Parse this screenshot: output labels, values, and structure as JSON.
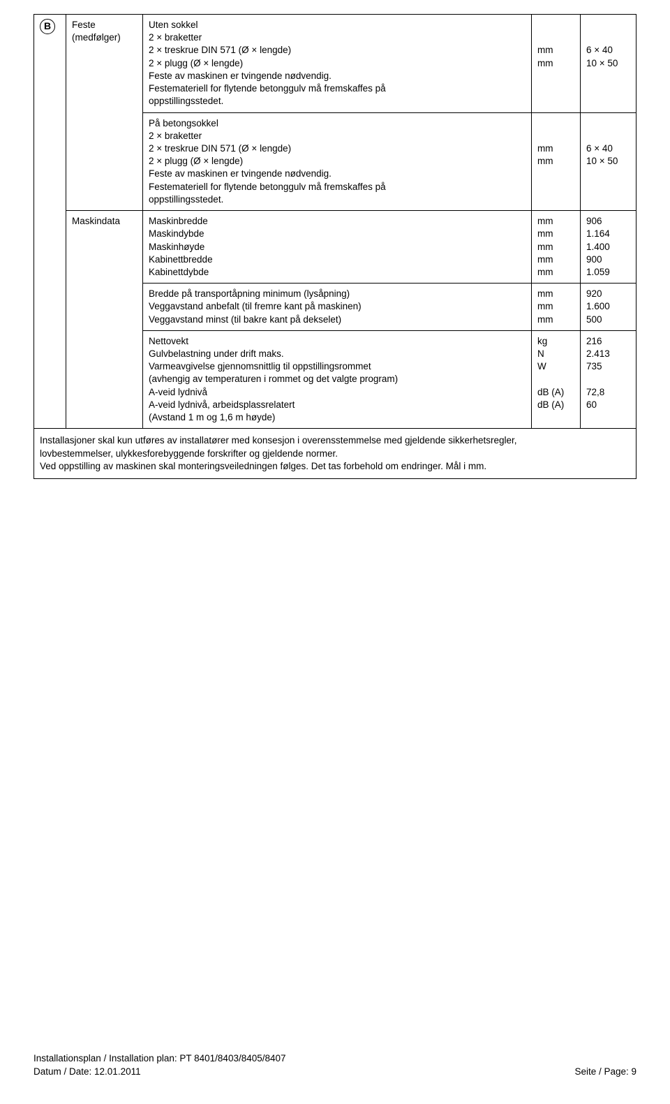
{
  "badge": "B",
  "row1": {
    "label_line1": "Feste",
    "label_line2": "(medfølger)",
    "desc_l1": "Uten sokkel",
    "desc_l2": "2 × braketter",
    "desc_l3": "2 × treskrue DIN 571 (Ø × lengde)",
    "desc_l4": "2 × plugg (Ø × lengde)",
    "desc_l5": "Feste av maskinen er tvingende nødvendig.",
    "desc_l6": "Festemateriell for flytende betonggulv må fremskaffes på",
    "desc_l7": "oppstillingsstedet.",
    "unit_l3": "mm",
    "unit_l4": "mm",
    "val_l3": "6 × 40",
    "val_l4": "10 × 50"
  },
  "row2": {
    "desc_l1": "På betongsokkel",
    "desc_l2": "2 × braketter",
    "desc_l3": "2 × treskrue DIN 571 (Ø × lengde)",
    "desc_l4": "2 × plugg (Ø × lengde)",
    "desc_l5": "Feste av maskinen er tvingende nødvendig.",
    "desc_l6": "Festemateriell for flytende betonggulv må fremskaffes på",
    "desc_l7": "oppstillingsstedet.",
    "unit_l3": "mm",
    "unit_l4": "mm",
    "val_l3": "6 × 40",
    "val_l4": "10 × 50"
  },
  "row3": {
    "label": "Maskindata",
    "desc_l1": "Maskinbredde",
    "desc_l2": "Maskindybde",
    "desc_l3": "Maskinhøyde",
    "desc_l4": "Kabinettbredde",
    "desc_l5": "Kabinettdybde",
    "unit_l1": "mm",
    "unit_l2": "mm",
    "unit_l3": "mm",
    "unit_l4": "mm",
    "unit_l5": "mm",
    "val_l1": "906",
    "val_l2": "1.164",
    "val_l3": "1.400",
    "val_l4": "900",
    "val_l5": "1.059"
  },
  "row4": {
    "desc_l1": "Bredde på transportåpning minimum (lysåpning)",
    "desc_l2": "Veggavstand anbefalt (til fremre kant på maskinen)",
    "desc_l3": "Veggavstand minst (til bakre kant på dekselet)",
    "unit_l1": "mm",
    "unit_l2": "mm",
    "unit_l3": "mm",
    "val_l1": "920",
    "val_l2": "1.600",
    "val_l3": "500"
  },
  "row5": {
    "desc_l1": "Nettovekt",
    "desc_l2": "Gulvbelastning under drift maks.",
    "desc_l3": "Varmeavgivelse gjennomsnittlig til oppstillingsrommet",
    "desc_l4": "(avhengig av temperaturen i rommet og det valgte program)",
    "desc_l5": "A-veid lydnivå",
    "desc_l6": "A-veid lydnivå, arbeidsplassrelatert",
    "desc_l7": "(Avstand 1 m og 1,6 m høyde)",
    "unit_l1": "kg",
    "unit_l2": "N",
    "unit_l3": "W",
    "unit_l5": "dB (A)",
    "unit_l6": "dB (A)",
    "val_l1": "216",
    "val_l2": "2.413",
    "val_l3": "735",
    "val_l5": "72,8",
    "val_l6": "60"
  },
  "note": {
    "l1": "Installasjoner skal kun utføres av installatører med konsesjon i overensstemmelse med gjeldende sikkerhetsregler,",
    "l2": "lovbestemmelser, ulykkesforebyggende forskrifter og gjeldende normer.",
    "l3": "Ved oppstilling av maskinen skal monteringsveiledningen følges. Det tas forbehold om endringer. Mål i mm."
  },
  "footer": {
    "plan": "Installationsplan / Installation plan: PT 8401/8403/8405/8407",
    "date": "Datum / Date: 12.01.2011",
    "page": "Seite / Page: 9"
  }
}
